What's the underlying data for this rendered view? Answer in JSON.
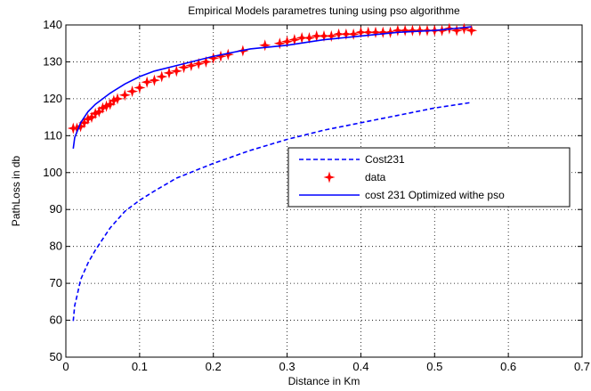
{
  "chart_data": {
    "type": "line",
    "title": "Empirical Models parametres tuning using pso algorithme",
    "xlabel": "Distance in Km",
    "ylabel": "PathLoss in db",
    "xlim": [
      0,
      0.7
    ],
    "ylim": [
      50,
      140
    ],
    "xticks": [
      0,
      0.1,
      0.2,
      0.3,
      0.4,
      0.5,
      0.6,
      0.7
    ],
    "xtick_labels": [
      "0",
      "0.1",
      "0.2",
      "0.3",
      "0.4",
      "0.5",
      "0.6",
      "0.7"
    ],
    "yticks": [
      50,
      60,
      70,
      80,
      90,
      100,
      110,
      120,
      130,
      140
    ],
    "ytick_labels": [
      "50",
      "60",
      "70",
      "80",
      "90",
      "100",
      "110",
      "120",
      "130",
      "140"
    ],
    "grid": true,
    "legend_position": "right",
    "series": [
      {
        "name": "Cost231",
        "style": "dashed",
        "color": "#0000ff",
        "x": [
          0.01,
          0.012,
          0.015,
          0.02,
          0.03,
          0.04,
          0.05,
          0.06,
          0.08,
          0.1,
          0.12,
          0.15,
          0.2,
          0.25,
          0.3,
          0.35,
          0.4,
          0.45,
          0.5,
          0.55
        ],
        "y": [
          59.8,
          64,
          66.5,
          71,
          75.5,
          79,
          82,
          85,
          89.5,
          92.5,
          95,
          98.5,
          102.5,
          106,
          109,
          111.5,
          113.5,
          115.5,
          117.5,
          119
        ]
      },
      {
        "name": "data",
        "style": "markers",
        "color": "#ff0000",
        "x": [
          0.01,
          0.015,
          0.02,
          0.025,
          0.03,
          0.035,
          0.04,
          0.045,
          0.05,
          0.055,
          0.06,
          0.065,
          0.07,
          0.08,
          0.09,
          0.1,
          0.11,
          0.12,
          0.13,
          0.14,
          0.15,
          0.16,
          0.17,
          0.18,
          0.19,
          0.2,
          0.21,
          0.22,
          0.24,
          0.27,
          0.29,
          0.3,
          0.31,
          0.32,
          0.33,
          0.34,
          0.35,
          0.36,
          0.37,
          0.38,
          0.39,
          0.4,
          0.41,
          0.42,
          0.43,
          0.44,
          0.45,
          0.46,
          0.47,
          0.48,
          0.49,
          0.5,
          0.51,
          0.52,
          0.53,
          0.54,
          0.55
        ],
        "y": [
          112,
          112,
          112.5,
          113.5,
          114.5,
          115,
          116,
          116.5,
          117.5,
          118,
          118.5,
          119.5,
          120,
          121,
          122,
          123,
          124.5,
          125,
          126,
          127,
          127.5,
          128.5,
          129,
          129.5,
          130,
          131,
          131.5,
          132,
          133,
          134.5,
          135,
          135.5,
          136,
          136.5,
          136.5,
          137,
          137,
          137,
          137.5,
          137.5,
          137.5,
          138,
          138,
          138,
          138,
          138,
          138.5,
          138.5,
          138.5,
          138.5,
          138.5,
          138.5,
          138.5,
          139,
          138.5,
          139,
          138.5
        ]
      },
      {
        "name": "cost 231 Optimized withe pso",
        "style": "solid",
        "color": "#0000ff",
        "x": [
          0.01,
          0.012,
          0.015,
          0.02,
          0.03,
          0.04,
          0.05,
          0.06,
          0.08,
          0.1,
          0.12,
          0.15,
          0.2,
          0.25,
          0.3,
          0.35,
          0.4,
          0.45,
          0.5,
          0.55
        ],
        "y": [
          106.5,
          109.5,
          111,
          113.5,
          116.5,
          118.5,
          120,
          121.5,
          124,
          126,
          127.5,
          129,
          131.5,
          133.5,
          134.5,
          136,
          137,
          138,
          138.5,
          139.5
        ]
      }
    ]
  }
}
